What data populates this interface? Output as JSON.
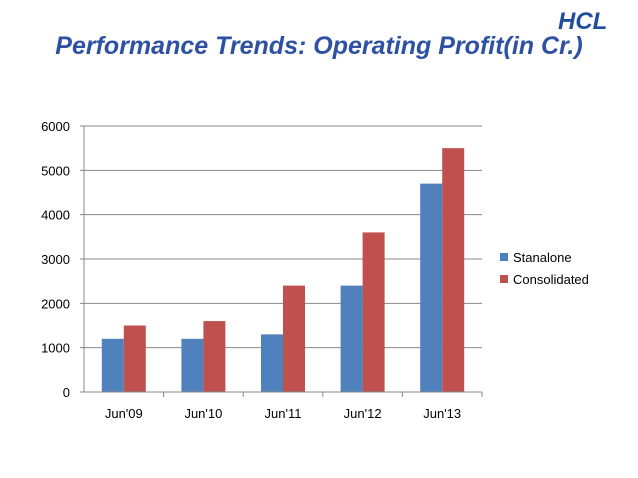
{
  "header": {
    "logo_text": "HCL",
    "title": "Performance Trends: Operating Profit(in Cr.)"
  },
  "colors": {
    "title": "#2e51a3",
    "logo": "#1f4e9c",
    "standalone": "#4f81bd",
    "consolidated": "#c0504d",
    "axis": "#888888",
    "grid": "#888888"
  },
  "chart_data": {
    "type": "bar",
    "categories": [
      "Jun'09",
      "Jun'10",
      "Jun'11",
      "Jun'12",
      "Jun'13"
    ],
    "series": [
      {
        "name": "Stanalone",
        "values": [
          1200,
          1200,
          1300,
          2400,
          4700
        ]
      },
      {
        "name": "Consolidated",
        "values": [
          1500,
          1600,
          2400,
          3600,
          5500
        ]
      }
    ],
    "yticks": [
      "0",
      "1000",
      "2000",
      "3000",
      "4000",
      "5000",
      "6000"
    ],
    "ylim": [
      0,
      6000
    ],
    "grid": true,
    "legend": "right"
  }
}
